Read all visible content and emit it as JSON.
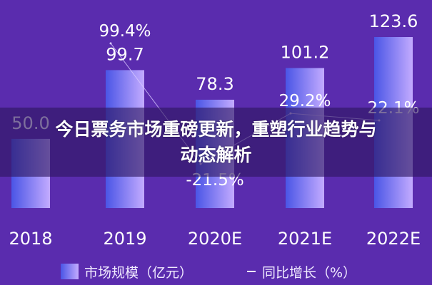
{
  "headline": "今日票务市场重磅更新，重塑行业趋势与动态解析",
  "chart_data": {
    "type": "bar",
    "categories": [
      "2018",
      "2019",
      "2020E",
      "2021E",
      "2022E"
    ],
    "series": [
      {
        "name": "市场规模（亿元）",
        "type": "bar",
        "values": [
          50.0,
          99.7,
          78.3,
          101.2,
          123.6
        ],
        "labels": [
          "50.0",
          "99.7",
          "78.3",
          "101.2",
          "123.6"
        ]
      },
      {
        "name": "同比增长（%）",
        "type": "line",
        "values": [
          null,
          99.4,
          -21.5,
          29.2,
          22.1
        ],
        "labels": [
          "",
          "99.4%",
          "-21.5%",
          "29.2%",
          "22.1%"
        ]
      }
    ],
    "legend": {
      "placement": "bottom",
      "items": [
        "市场规模（亿元）",
        "同比增长（%）"
      ]
    },
    "grid": false,
    "colors": {
      "background": "#5a2cae",
      "bar_start": "#4a55e6",
      "bar_end": "#c3abff",
      "line": "#d8c8ff",
      "text": "#ffffff"
    }
  }
}
